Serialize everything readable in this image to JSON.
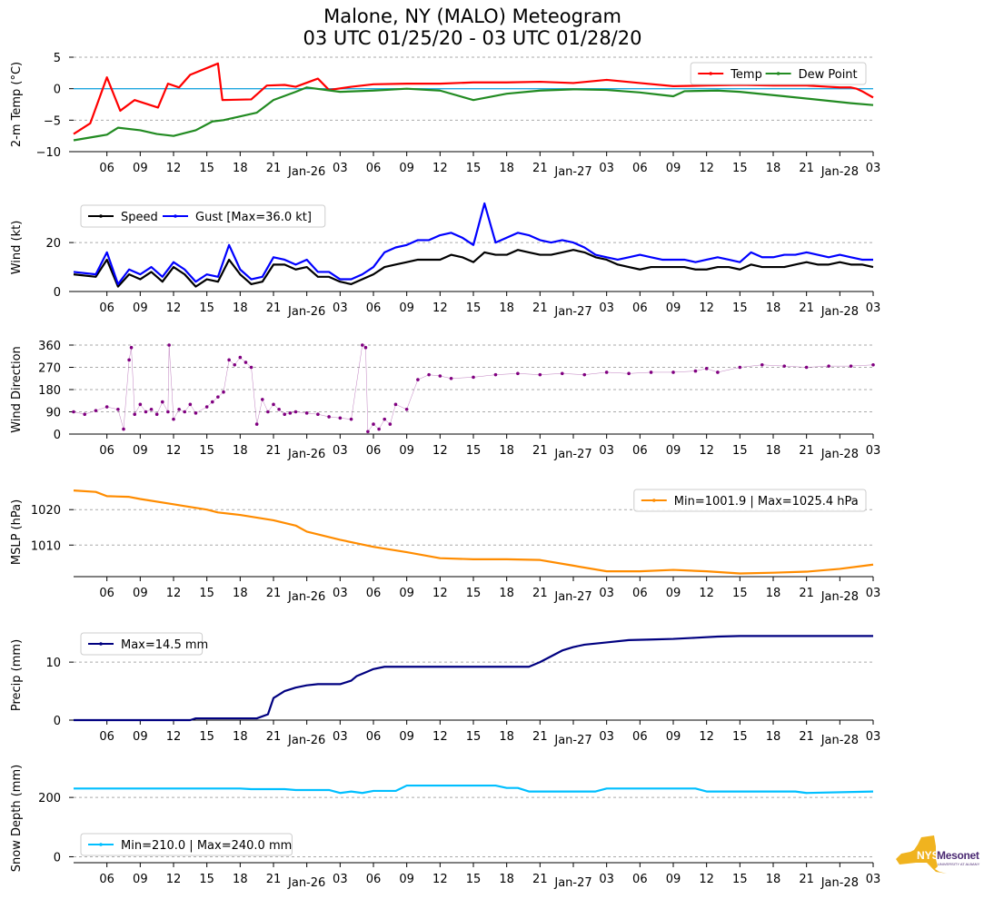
{
  "title": {
    "line1": "Malone, NY (MALO) Meteogram",
    "line2": "03 UTC 01/25/20 - 03 UTC 01/28/20"
  },
  "logo": {
    "nys": "NYS",
    "mesonet": "Mesonet",
    "university": "UNIVERSITY AT ALBANY",
    "colors": {
      "state": "#f0b31f",
      "text": "#4b2a73"
    }
  },
  "chart_data": [
    {
      "type": "line",
      "panel": "temperature",
      "ylabel": "2-m Temp ($^\\circ$C)",
      "ylabel_display": "2-m Temp (°C)",
      "ylim": [
        -10,
        5
      ],
      "yticks": [
        5,
        0,
        -5,
        -10
      ],
      "yticks_text": [
        "5",
        "0",
        "−5",
        "−10"
      ],
      "gridlines": [
        5,
        -5
      ],
      "zero_line": {
        "value": 0,
        "color": "#1fa8e0"
      },
      "legend": {
        "position": "top-right",
        "entries": [
          "Temp",
          "Dew Point"
        ]
      },
      "x_hours": [
        0,
        3,
        6,
        9,
        12,
        15,
        18,
        21,
        24,
        27,
        30,
        33,
        36,
        39,
        42,
        45,
        48,
        51,
        54,
        57,
        60,
        63,
        66,
        69,
        72
      ],
      "series": [
        {
          "name": "Temp",
          "color": "#ff0000",
          "values": [
            -7.2,
            -5.5,
            1.8,
            -3.5,
            -1.8,
            -3.0,
            0.8,
            0.2,
            2.2,
            4.0,
            -1.8,
            -1.7,
            0.5,
            0.6,
            0.3,
            1.6,
            -0.2,
            0.3,
            0.7,
            0.8,
            0.8,
            1.0,
            1.0,
            1.1,
            0.9,
            1.4,
            0.9,
            0.4,
            0.5,
            0.6,
            0.5,
            0.5,
            0.3,
            0.2,
            0.2,
            0.0,
            -0.4,
            -1.4
          ],
          "x": [
            0,
            1.5,
            3,
            4.2,
            5.5,
            7.6,
            8.5,
            9.5,
            10.5,
            13,
            13.4,
            16,
            17.4,
            19,
            20,
            22,
            23,
            25,
            27,
            30,
            33,
            36,
            39,
            42,
            45,
            48,
            51,
            54,
            57,
            60,
            63,
            66,
            68,
            69,
            70,
            70.5,
            71,
            72
          ]
        },
        {
          "name": "Dew Point",
          "color": "#228b22",
          "values": [
            -8.2,
            -7.6,
            -7.3,
            -6.2,
            -6.6,
            -7.2,
            -7.5,
            -6.6,
            -5.2,
            -5.0,
            -4.4,
            -3.8,
            -1.8,
            -0.5,
            0.2,
            -0.5,
            -0.3,
            0.0,
            -0.3,
            -1.8,
            -0.8,
            -0.3,
            -0.1,
            -0.2,
            -0.6,
            -1.0,
            -1.2,
            -0.4,
            -0.3,
            -0.5,
            -1.2,
            -2.3,
            -2.6
          ],
          "x": [
            0,
            2,
            3,
            4,
            6,
            7.5,
            9,
            11,
            12.5,
            13.5,
            15,
            16.5,
            18,
            20,
            21,
            24,
            27,
            30,
            33,
            36,
            39,
            42,
            45,
            48,
            51,
            53,
            54,
            55,
            58,
            60,
            64,
            70,
            72
          ]
        }
      ]
    },
    {
      "type": "line",
      "panel": "wind",
      "ylabel": "Wind (kt)",
      "ylim": [
        0,
        36
      ],
      "yticks": [
        20,
        0
      ],
      "gridlines": [
        20,
        0
      ],
      "legend": {
        "position": "top-left",
        "entries": [
          "Speed",
          "Gust [Max=36.0 kt]"
        ]
      },
      "series": [
        {
          "name": "Speed",
          "color": "#000000",
          "x": [
            0,
            2,
            3,
            4,
            5,
            6,
            7,
            8,
            9,
            10,
            11,
            12,
            13,
            14,
            15,
            16,
            17,
            18,
            19,
            20,
            21,
            22,
            23,
            24,
            25,
            26,
            27,
            28,
            29,
            30,
            31,
            32,
            33,
            34,
            35,
            36,
            37,
            38,
            39,
            40,
            41,
            42,
            43,
            44,
            45,
            46,
            47,
            48,
            49,
            50,
            51,
            52,
            53,
            54,
            55,
            56,
            57,
            58,
            59,
            60,
            61,
            62,
            63,
            64,
            65,
            66,
            67,
            68,
            69,
            70,
            71,
            72
          ],
          "values": [
            7,
            6,
            13,
            2,
            7,
            5,
            8,
            4,
            10,
            7,
            2,
            5,
            4,
            13,
            7,
            3,
            4,
            11,
            11,
            9,
            10,
            6,
            6,
            4,
            3,
            5,
            7,
            10,
            11,
            12,
            13,
            13,
            13,
            15,
            14,
            12,
            16,
            15,
            15,
            17,
            16,
            15,
            15,
            16,
            17,
            16,
            14,
            13,
            11,
            10,
            9,
            10,
            10,
            10,
            10,
            9,
            9,
            10,
            10,
            9,
            11,
            10,
            10,
            10,
            11,
            12,
            11,
            11,
            12,
            11,
            11,
            10
          ]
        },
        {
          "name": "Gust [Max=36.0 kt]",
          "color": "#0000ff",
          "x": [
            0,
            2,
            3,
            4,
            5,
            6,
            7,
            8,
            9,
            10,
            11,
            12,
            13,
            14,
            15,
            16,
            17,
            18,
            19,
            20,
            21,
            22,
            23,
            24,
            25,
            26,
            27,
            28,
            29,
            30,
            31,
            32,
            33,
            34,
            35,
            36,
            37,
            38,
            39,
            40,
            41,
            42,
            43,
            44,
            45,
            46,
            47,
            48,
            49,
            50,
            51,
            52,
            53,
            54,
            55,
            56,
            57,
            58,
            59,
            60,
            61,
            62,
            63,
            64,
            65,
            66,
            67,
            68,
            69,
            70,
            71,
            72
          ],
          "values": [
            8,
            7,
            16,
            3,
            9,
            7,
            10,
            6,
            12,
            9,
            4,
            7,
            6,
            19,
            9,
            5,
            6,
            14,
            13,
            11,
            13,
            8,
            8,
            5,
            5,
            7,
            10,
            16,
            18,
            19,
            21,
            21,
            23,
            24,
            22,
            19,
            36,
            20,
            22,
            24,
            23,
            21,
            20,
            21,
            20,
            18,
            15,
            14,
            13,
            14,
            15,
            14,
            13,
            13,
            13,
            12,
            13,
            14,
            13,
            12,
            16,
            14,
            14,
            15,
            15,
            16,
            15,
            14,
            15,
            14,
            13,
            13
          ]
        }
      ]
    },
    {
      "type": "scatter",
      "panel": "wind_direction",
      "ylabel": "Wind Direction",
      "ylim": [
        0,
        360
      ],
      "yticks": [
        360,
        270,
        180,
        90,
        0
      ],
      "gridlines": [
        360,
        270,
        180,
        90,
        0
      ],
      "series": [
        {
          "name": "Wind Direction",
          "color": "#800080",
          "x": [
            0,
            1,
            2,
            3,
            4,
            4.5,
            5,
            5.2,
            5.5,
            6,
            6.5,
            7,
            7.5,
            8,
            8.5,
            8.6,
            9,
            9.5,
            10,
            10.5,
            11,
            12,
            12.5,
            13,
            13.5,
            14,
            14.5,
            15,
            15.5,
            16,
            16.5,
            17,
            17.5,
            18,
            18.5,
            19,
            19.5,
            20,
            21,
            22,
            23,
            24,
            25,
            26,
            26.3,
            26.5,
            27,
            27.5,
            28,
            28.5,
            29,
            30,
            31,
            32,
            33,
            34,
            36,
            38,
            40,
            42,
            44,
            46,
            48,
            50,
            52,
            54,
            56,
            57,
            58,
            60,
            62,
            64,
            66,
            68,
            70,
            72
          ],
          "values": [
            90,
            80,
            95,
            110,
            100,
            20,
            300,
            350,
            80,
            120,
            90,
            100,
            80,
            130,
            90,
            360,
            60,
            100,
            90,
            120,
            85,
            110,
            130,
            150,
            170,
            300,
            280,
            310,
            290,
            270,
            40,
            140,
            90,
            120,
            100,
            80,
            85,
            90,
            85,
            80,
            70,
            65,
            60,
            360,
            350,
            10,
            40,
            20,
            60,
            40,
            120,
            100,
            220,
            240,
            235,
            225,
            230,
            240,
            245,
            240,
            245,
            240,
            250,
            245,
            250,
            250,
            255,
            265,
            250,
            270,
            280,
            275,
            270,
            275,
            275,
            280
          ]
        }
      ]
    },
    {
      "type": "line",
      "panel": "mslp",
      "ylabel": "MSLP (hPa)",
      "ylim": [
        1001.1,
        1026.2
      ],
      "yticks": [
        1020,
        1010
      ],
      "gridlines": [
        1020,
        1010
      ],
      "legend": {
        "position": "top-right",
        "entries": [
          "Min=1001.9 | Max=1025.4 hPa"
        ]
      },
      "series": [
        {
          "name": "Min=1001.9 | Max=1025.4 hPa",
          "color": "#ff8c00",
          "x": [
            0,
            2,
            3,
            5,
            6,
            9,
            10,
            12,
            13,
            15,
            18,
            20,
            21,
            24,
            27,
            30,
            33,
            36,
            39,
            42,
            45,
            48,
            51,
            54,
            57,
            60,
            63,
            66,
            69,
            72
          ],
          "values": [
            1025.4,
            1025.0,
            1023.8,
            1023.6,
            1023.0,
            1021.5,
            1021.0,
            1020.0,
            1019.2,
            1018.5,
            1017.0,
            1015.5,
            1013.8,
            1011.5,
            1009.5,
            1008.0,
            1006.3,
            1006.0,
            1006.0,
            1005.8,
            1004.2,
            1002.6,
            1002.6,
            1003.0,
            1002.6,
            1002.0,
            1002.2,
            1002.5,
            1003.3,
            1004.5
          ]
        }
      ]
    },
    {
      "type": "line",
      "panel": "precip",
      "ylabel": "Precip (mm)",
      "ylim": [
        0,
        15.5
      ],
      "yticks": [
        10,
        0
      ],
      "gridlines": [
        10
      ],
      "legend": {
        "position": "top-left",
        "entries": [
          "Max=14.5 mm"
        ]
      },
      "series": [
        {
          "name": "Max=14.5 mm",
          "color": "#000080",
          "x": [
            0,
            10.5,
            11,
            16.5,
            17.5,
            18,
            19,
            20,
            21,
            22,
            24,
            25,
            25.5,
            26.5,
            27,
            28,
            30,
            33,
            36,
            39,
            41,
            42,
            43,
            44,
            45,
            46,
            48,
            50,
            52,
            54,
            56,
            58,
            60,
            62,
            64,
            66,
            68,
            70,
            72
          ],
          "values": [
            0,
            0,
            0.3,
            0.3,
            1.0,
            3.8,
            5.0,
            5.6,
            6.0,
            6.2,
            6.2,
            6.8,
            7.6,
            8.4,
            8.8,
            9.2,
            9.2,
            9.2,
            9.2,
            9.2,
            9.2,
            10.0,
            11.0,
            12.0,
            12.6,
            13.0,
            13.4,
            13.8,
            13.9,
            14.0,
            14.2,
            14.4,
            14.5,
            14.5,
            14.5,
            14.5,
            14.5,
            14.5,
            14.5
          ]
        }
      ]
    },
    {
      "type": "line",
      "panel": "snow_depth",
      "ylabel": "Snow Depth (mm)",
      "ylim": [
        -20,
        280
      ],
      "yticks": [
        200,
        0
      ],
      "gridlines": [
        200,
        0
      ],
      "legend": {
        "position": "bottom-left",
        "entries": [
          "Min=210.0 | Max=240.0 mm"
        ]
      },
      "series": [
        {
          "name": "Min=210.0 | Max=240.0 mm",
          "color": "#00bfff",
          "x": [
            0,
            15,
            16,
            19,
            20,
            23,
            24,
            25,
            26,
            27,
            29,
            30,
            38,
            39,
            40,
            41,
            42,
            47,
            48,
            49,
            56,
            57,
            58,
            65,
            66,
            72
          ],
          "values": [
            230,
            230,
            228,
            228,
            225,
            225,
            215,
            220,
            215,
            222,
            222,
            240,
            240,
            232,
            232,
            220,
            220,
            220,
            230,
            230,
            230,
            220,
            220,
            220,
            215,
            220
          ]
        }
      ]
    }
  ],
  "x_axis": {
    "range_hours": [
      0,
      72
    ],
    "hour_ticks": [
      "06",
      "09",
      "12",
      "15",
      "18",
      "21",
      "03",
      "06",
      "09",
      "12",
      "15",
      "18",
      "21",
      "03",
      "06",
      "09",
      "12",
      "15",
      "18",
      "21",
      "03"
    ],
    "hour_tick_positions": [
      3,
      6,
      9,
      12,
      15,
      18,
      24,
      27,
      30,
      33,
      36,
      39,
      42,
      48,
      51,
      54,
      57,
      60,
      63,
      66,
      72
    ],
    "date_ticks": [
      "Jan-26",
      "Jan-27",
      "Jan-28"
    ],
    "date_tick_positions": [
      21,
      45,
      69
    ]
  }
}
